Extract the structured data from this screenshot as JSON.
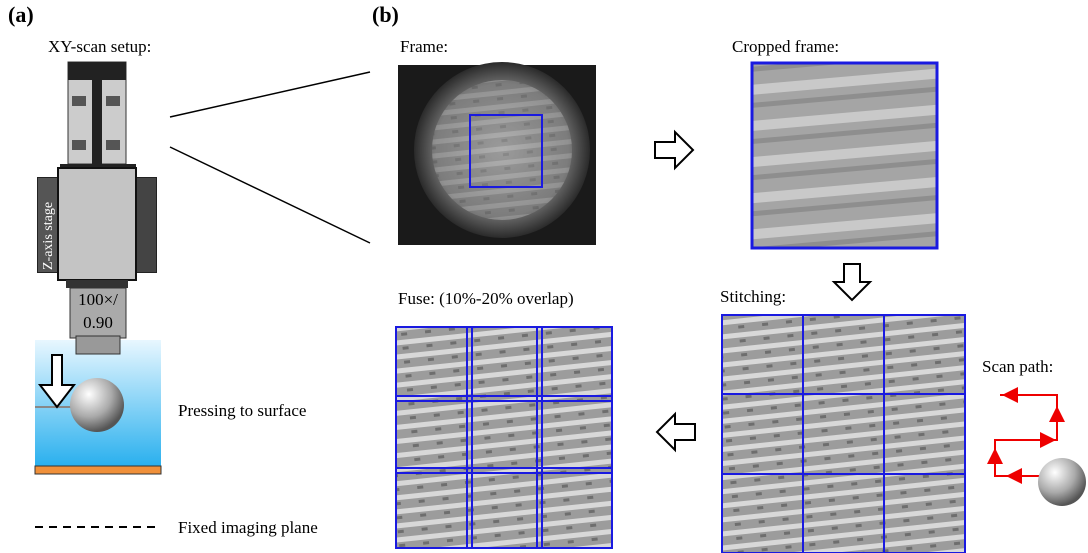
{
  "panel_a": {
    "label": "(a)",
    "title": "XY-scan setup:",
    "stage_label": "Z-axis stage",
    "objective": [
      "100×/",
      "0.90"
    ],
    "pressing_label": "Pressing to surface",
    "plane_label": "Fixed imaging plane"
  },
  "panel_b": {
    "label": "(b)",
    "frame_label": "Frame:",
    "cropped_label": "Cropped frame:",
    "stitching_label": "Stitching:",
    "fuse_label": "Fuse: (10%-20% overlap)",
    "scan_path_label": "Scan path:"
  }
}
